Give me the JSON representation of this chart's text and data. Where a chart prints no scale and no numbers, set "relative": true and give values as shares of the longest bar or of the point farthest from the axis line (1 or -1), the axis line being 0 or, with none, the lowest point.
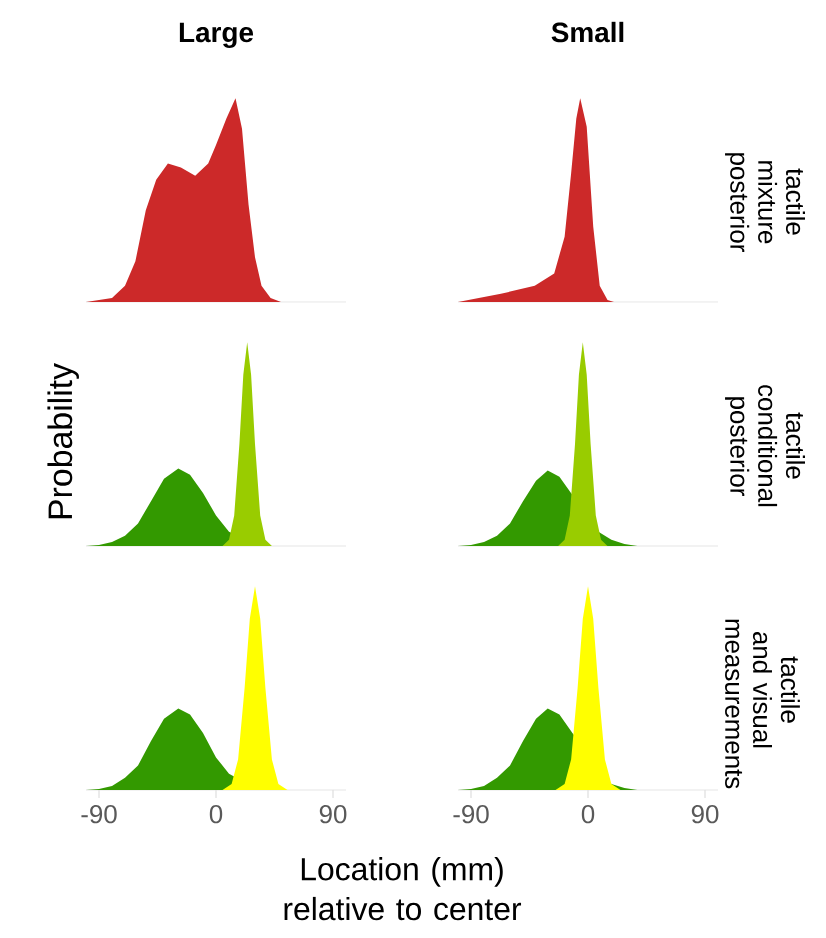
{
  "chart_data": [
    {
      "type": "area",
      "title": "Large",
      "relative": true,
      "xlim": [
        -100,
        100
      ],
      "tick_labels": false,
      "series": [
        {
          "color": "#cc2929",
          "x": [
            -100,
            -80,
            -70,
            -62,
            -54,
            -46,
            -37,
            -27,
            -16,
            -6,
            0,
            8,
            15,
            20,
            25,
            30,
            35,
            42,
            50,
            100
          ],
          "values": [
            0,
            0.02,
            0.08,
            0.2,
            0.45,
            0.6,
            0.68,
            0.66,
            0.62,
            0.68,
            0.77,
            0.9,
            1,
            0.85,
            0.48,
            0.22,
            0.08,
            0.02,
            0,
            0
          ]
        }
      ]
    },
    {
      "type": "area",
      "title": "Small",
      "y2label": "tactile mixture posterior",
      "relative": true,
      "xlim": [
        -100,
        100
      ],
      "tick_labels": false,
      "series": [
        {
          "color": "#cc2929",
          "x": [
            -100,
            -67,
            -41,
            -26,
            -18,
            -13,
            -9,
            -6,
            -1,
            4,
            9,
            15,
            20,
            100
          ],
          "values": [
            0,
            0.04,
            0.08,
            0.14,
            0.32,
            0.63,
            0.9,
            1,
            0.86,
            0.37,
            0.08,
            0.01,
            0,
            0
          ]
        }
      ]
    },
    {
      "type": "area",
      "ylabel": "Probability",
      "relative": true,
      "xlim": [
        -100,
        100
      ],
      "tick_labels": false,
      "series": [
        {
          "color": "#339900",
          "x": [
            -100,
            -90,
            -80,
            -70,
            -60,
            -50,
            -40,
            -29,
            -20,
            -10,
            0,
            10,
            20,
            30,
            40,
            100
          ],
          "values": [
            0,
            0.005,
            0.02,
            0.05,
            0.11,
            0.22,
            0.33,
            0.38,
            0.35,
            0.26,
            0.15,
            0.07,
            null,
            0.01,
            0,
            0
          ]
        },
        {
          "color": "#99cc00",
          "x": [
            -100,
            5,
            10,
            14,
            18,
            21,
            24,
            27,
            30,
            34,
            38,
            43,
            100
          ],
          "values": [
            0,
            0,
            0.03,
            0.15,
            0.5,
            0.84,
            1,
            0.84,
            0.5,
            0.15,
            0.03,
            0,
            0
          ]
        }
      ]
    },
    {
      "type": "area",
      "y2label": "tactile conditional posterior",
      "relative": true,
      "xlim": [
        -100,
        100
      ],
      "tick_labels": false,
      "series": [
        {
          "color": "#339900",
          "x": [
            -100,
            -90,
            -80,
            -70,
            -60,
            -50,
            -40,
            -31,
            -22,
            -12,
            -2,
            8,
            18,
            28,
            38,
            100
          ],
          "values": [
            0,
            0.005,
            0.02,
            0.05,
            0.11,
            0.22,
            0.32,
            0.37,
            0.34,
            0.25,
            null,
            0.07,
            0.03,
            0.01,
            0,
            0
          ]
        },
        {
          "color": "#99cc00",
          "x": [
            -100,
            -23,
            -18,
            -14,
            -10,
            -7,
            -4,
            -1,
            2,
            6,
            10,
            15,
            100
          ],
          "values": [
            0,
            0,
            0.03,
            0.15,
            0.5,
            0.84,
            1,
            0.84,
            0.5,
            0.15,
            0.03,
            0,
            0
          ]
        }
      ]
    },
    {
      "type": "area",
      "xlabel": "Location (mm) relative to center",
      "relative": true,
      "xlim": [
        -100,
        100
      ],
      "xticks": [
        -90,
        0,
        90
      ],
      "tick_labels": "x",
      "series": [
        {
          "color": "#339900",
          "x": [
            -100,
            -90,
            -80,
            -70,
            -60,
            -50,
            -40,
            -29,
            -20,
            -10,
            0,
            10,
            20,
            30,
            40,
            100
          ],
          "values": [
            0,
            0.005,
            0.02,
            0.06,
            0.12,
            0.24,
            0.35,
            0.4,
            0.37,
            0.28,
            0.16,
            0.08,
            null,
            0.01,
            0,
            0
          ]
        },
        {
          "color": "#ffff00",
          "x": [
            -100,
            5,
            12,
            17,
            22,
            26,
            30,
            34,
            38,
            43,
            48,
            55,
            100
          ],
          "values": [
            0,
            0,
            0.03,
            0.15,
            0.5,
            0.84,
            1,
            0.84,
            0.5,
            0.15,
            0.03,
            0,
            0
          ]
        }
      ]
    },
    {
      "type": "area",
      "y2label": "tactile and visual measurements",
      "relative": true,
      "xlim": [
        -100,
        100
      ],
      "xticks": [
        -90,
        0,
        90
      ],
      "tick_labels": "x",
      "series": [
        {
          "color": "#339900",
          "x": [
            -100,
            -90,
            -80,
            -70,
            -60,
            -50,
            -40,
            -31,
            -22,
            -12,
            -2,
            8,
            18,
            28,
            38,
            100
          ],
          "values": [
            0,
            0.005,
            0.02,
            0.06,
            0.12,
            0.24,
            0.35,
            0.4,
            0.37,
            0.28,
            null,
            null,
            0.03,
            0.01,
            0,
            0
          ]
        },
        {
          "color": "#ffff00",
          "x": [
            -100,
            -25,
            -18,
            -13,
            -8,
            -4,
            0,
            4,
            8,
            13,
            18,
            25,
            100
          ],
          "values": [
            0,
            0,
            0.03,
            0.15,
            0.5,
            0.84,
            1,
            0.84,
            0.5,
            0.15,
            0.03,
            0,
            0
          ]
        }
      ]
    }
  ]
}
